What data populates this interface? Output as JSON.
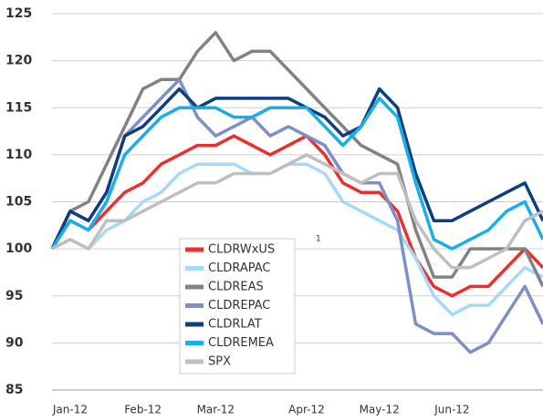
{
  "chart_data": {
    "type": "line",
    "categories": [
      null,
      "Jan-12",
      null,
      null,
      null,
      "Feb-12",
      null,
      null,
      null,
      "Mar-12",
      null,
      null,
      null,
      null,
      "Apr-12",
      null,
      null,
      null,
      "May-12",
      null,
      null,
      null,
      "Jun-12",
      null,
      null,
      null,
      null,
      null
    ],
    "series": [
      {
        "name": "CLDRWxUS",
        "color": "#e8312f",
        "values": [
          100,
          103,
          102,
          104,
          106,
          107,
          109,
          110,
          111,
          111,
          112,
          111,
          110,
          111,
          112,
          110,
          107,
          106,
          106,
          104,
          99,
          96,
          95,
          96,
          96,
          98,
          100,
          98
        ]
      },
      {
        "name": "CLDRAPAC",
        "color": "#a6d9f5",
        "values": [
          100,
          101,
          100,
          102,
          103,
          105,
          106,
          108,
          109,
          109,
          109,
          108,
          108,
          109,
          109,
          108,
          105,
          104,
          103,
          102,
          99,
          95,
          93,
          94,
          94,
          96,
          98,
          97
        ]
      },
      {
        "name": "CLDREAS",
        "color": "#808285",
        "values": [
          100,
          104,
          105,
          109,
          113,
          117,
          118,
          118,
          121,
          123,
          120,
          121,
          121,
          119,
          117,
          115,
          113,
          111,
          110,
          109,
          102,
          97,
          97,
          100,
          100,
          100,
          100,
          96
        ]
      },
      {
        "name": "CLDREPAC",
        "color": "#7f8fc4",
        "values": [
          100,
          104,
          103,
          106,
          112,
          114,
          116,
          118,
          114,
          112,
          113,
          114,
          112,
          113,
          112,
          111,
          108,
          107,
          107,
          103,
          92,
          91,
          91,
          89,
          90,
          93,
          96,
          92
        ]
      },
      {
        "name": "CLDRLAT",
        "color": "#0d3f7e",
        "values": [
          100,
          104,
          103,
          106,
          112,
          113,
          115,
          117,
          115,
          116,
          116,
          116,
          116,
          116,
          115,
          114,
          112,
          113,
          117,
          115,
          108,
          103,
          103,
          104,
          105,
          106,
          107,
          103
        ]
      },
      {
        "name": "CLDREMEA",
        "color": "#1aaee8",
        "values": [
          100,
          103,
          102,
          105,
          110,
          112,
          114,
          115,
          115,
          115,
          114,
          114,
          115,
          115,
          115,
          113,
          111,
          113,
          116,
          114,
          107,
          101,
          100,
          101,
          102,
          104,
          105,
          101
        ]
      },
      {
        "name": "SPX",
        "color": "#bfbfbf",
        "values": [
          100,
          101,
          100,
          103,
          103,
          104,
          105,
          106,
          107,
          107,
          108,
          108,
          108,
          109,
          110,
          109,
          108,
          107,
          108,
          108,
          103,
          100,
          98,
          98,
          99,
          100,
          103,
          104
        ]
      }
    ],
    "annotation": "1",
    "ylim": [
      85,
      125
    ],
    "yticks": [
      85,
      90,
      95,
      100,
      105,
      110,
      115,
      120,
      125
    ],
    "grid": true
  }
}
